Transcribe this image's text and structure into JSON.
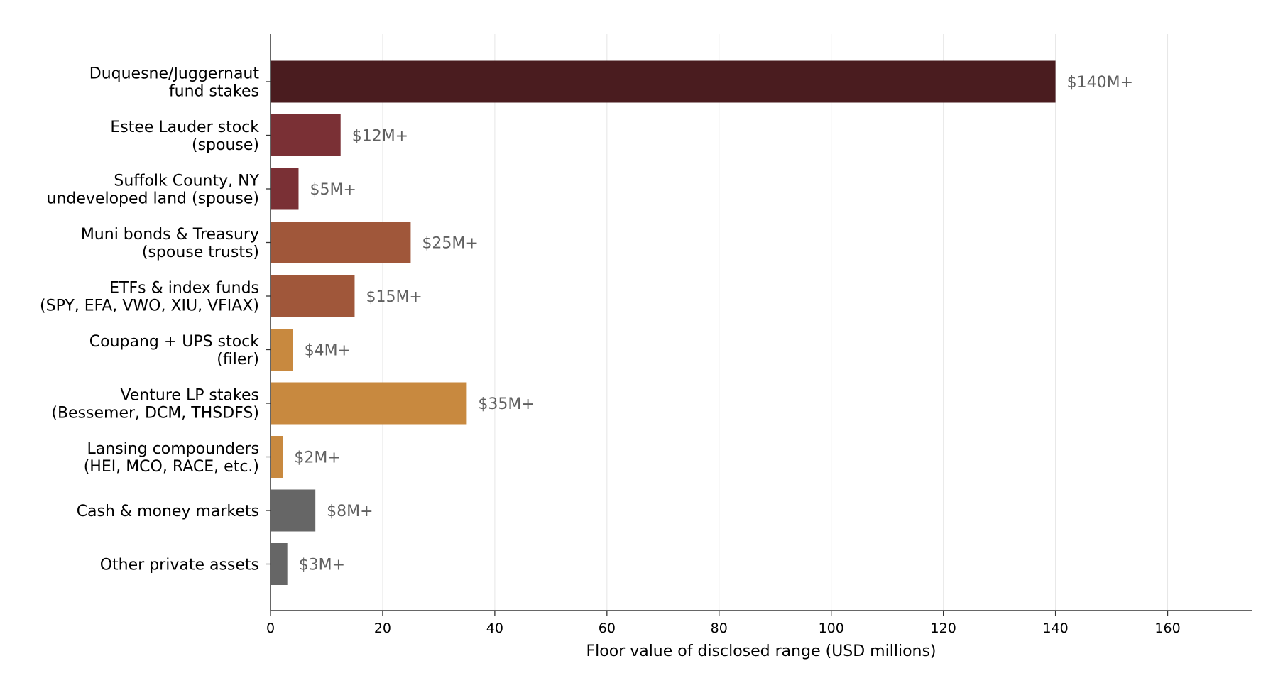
{
  "chart_data": {
    "type": "bar",
    "orientation": "horizontal",
    "categories": [
      [
        "Duquesne/Juggernaut",
        "fund stakes"
      ],
      [
        "Estee Lauder stock",
        "(spouse)"
      ],
      [
        "Suffolk County, NY",
        "undeveloped land (spouse)"
      ],
      [
        "Muni bonds & Treasury",
        "(spouse trusts)"
      ],
      [
        "ETFs & index funds",
        "(SPY, EFA, VWO, XIU, VFIAX)"
      ],
      [
        "Coupang + UPS stock",
        "(filer)"
      ],
      [
        "Venture LP stakes",
        "(Bessemer, DCM, THSDFS)"
      ],
      [
        "Lansing compounders",
        "(HEI, MCO, RACE, etc.)"
      ],
      [
        "Cash & money markets"
      ],
      [
        "Other private assets"
      ]
    ],
    "values": [
      140,
      12.5,
      5,
      25,
      15,
      4,
      35,
      2.2,
      8,
      3
    ],
    "value_labels": [
      "$140M+",
      "$12M+",
      "$5M+",
      "$25M+",
      "$15M+",
      "$4M+",
      "$35M+",
      "$2M+",
      "$8M+",
      "$3M+"
    ],
    "colors": [
      "#4a1c1f",
      "#7a3035",
      "#7a3035",
      "#a0573a",
      "#a0573a",
      "#c8893f",
      "#c8893f",
      "#c8893f",
      "#666666",
      "#666666"
    ],
    "xlabel": "Floor value of disclosed range (USD millions)",
    "ylabel": "",
    "title": "",
    "xlim": [
      0,
      175
    ],
    "xticks": [
      0,
      20,
      40,
      60,
      80,
      100,
      120,
      140,
      160
    ],
    "grid": "vertical",
    "legend": "none"
  }
}
